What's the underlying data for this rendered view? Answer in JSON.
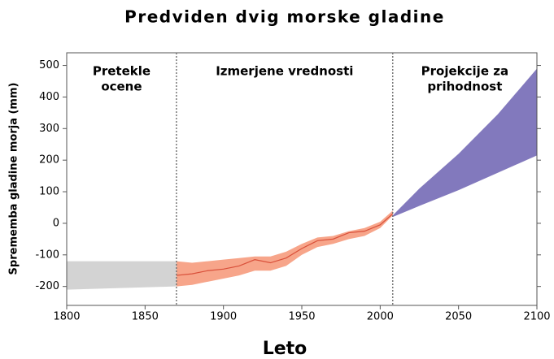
{
  "chart_data": {
    "type": "band",
    "title": "Predviden dvig morske gladine",
    "xlabel": "Leto",
    "ylabel": "Sprememba gladine morja (mm)",
    "xlim": [
      1800,
      2100
    ],
    "xticks": [
      1800,
      1850,
      1900,
      1950,
      2000,
      2050,
      2100
    ],
    "ylim": [
      -260,
      540
    ],
    "yticks": [
      -200,
      -100,
      0,
      100,
      200,
      300,
      400,
      500
    ],
    "grid": false,
    "dividers": [
      1870,
      2008
    ],
    "annotations": [
      [
        "Pretekle",
        "ocene"
      ],
      [
        "Izmerjene vrednosti"
      ],
      [
        "Projekcije za",
        "prihodnost"
      ]
    ],
    "bands": [
      {
        "color": "#d3d3d3",
        "x": [
          1800,
          1870
        ],
        "lower": [
          -210,
          -200
        ],
        "upper": [
          -120,
          -120
        ]
      },
      {
        "color": "#f7a58a",
        "x": [
          1870,
          1880,
          1890,
          1900,
          1910,
          1920,
          1930,
          1940,
          1950,
          1960,
          1970,
          1980,
          1990,
          2000,
          2008
        ],
        "lower": [
          -200,
          -195,
          -185,
          -175,
          -165,
          -150,
          -150,
          -135,
          -100,
          -75,
          -65,
          -50,
          -40,
          -15,
          25
        ],
        "upper": [
          -120,
          -125,
          -120,
          -115,
          -110,
          -105,
          -105,
          -90,
          -65,
          -45,
          -40,
          -25,
          -15,
          5,
          40
        ]
      },
      {
        "color": "#8279bd",
        "x": [
          2008,
          2025,
          2050,
          2075,
          2100
        ],
        "lower": [
          20,
          55,
          105,
          160,
          215
        ],
        "upper": [
          25,
          110,
          220,
          345,
          490
        ]
      }
    ],
    "series": [
      {
        "color": "#d9503a",
        "x": [
          1870,
          1880,
          1890,
          1900,
          1910,
          1920,
          1930,
          1940,
          1950,
          1960,
          1970,
          1980,
          1990,
          2000,
          2008
        ],
        "values": [
          -165,
          -160,
          -150,
          -145,
          -135,
          -115,
          -125,
          -110,
          -80,
          -55,
          -50,
          -30,
          -25,
          -5,
          30
        ]
      }
    ]
  }
}
